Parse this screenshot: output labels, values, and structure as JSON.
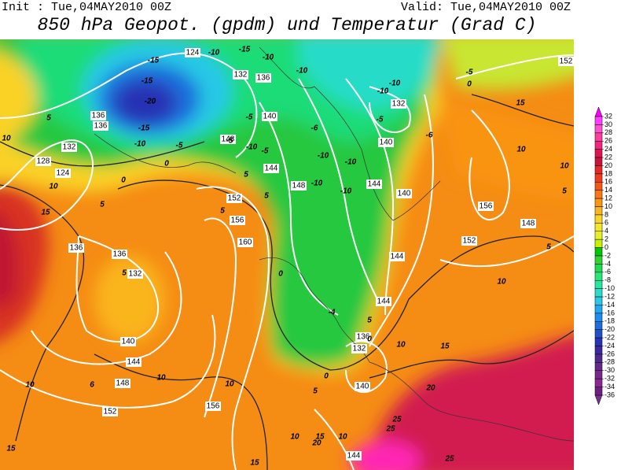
{
  "header": {
    "init": "Init : Tue,04MAY2010 00Z",
    "valid": "Valid: Tue,04MAY2010 00Z",
    "title": "850 hPa Geopot. (gpdm) und Temperatur (Grad C)"
  },
  "map": {
    "height_labels": [
      "124",
      "132",
      "136",
      "136",
      "136",
      "132",
      "128",
      "124",
      "148",
      "140",
      "144",
      "148",
      "152",
      "156",
      "160",
      "136",
      "136",
      "132",
      "140",
      "144",
      "148",
      "152",
      "156",
      "132",
      "140",
      "144",
      "140",
      "156",
      "152",
      "148",
      "144",
      "144",
      "136",
      "132",
      "140",
      "144",
      "152"
    ],
    "temperature_labels": [
      "-15",
      "-10",
      "-15",
      "-10",
      "-15",
      "-20",
      "-15",
      "-10",
      "-5",
      "-5",
      "-5",
      "-10",
      "-5",
      "-10",
      "-6",
      "-10",
      "-10",
      "-10",
      "-10",
      "-10",
      "-10",
      "-5",
      "-6",
      "-5",
      "0",
      "5",
      "10",
      "10",
      "15",
      "5",
      "0",
      "0",
      "5",
      "5",
      "5",
      "0",
      "5",
      "-4",
      "5",
      "0",
      "10",
      "15",
      "20",
      "25",
      "25",
      "25",
      "10",
      "6",
      "10",
      "10",
      "10",
      "15",
      "10",
      "20",
      "15",
      "15",
      "15",
      "10",
      "10",
      "5",
      "5",
      "10",
      "0",
      "5"
    ]
  },
  "colorbar": {
    "labels": [
      32,
      30,
      28,
      26,
      24,
      22,
      20,
      18,
      16,
      14,
      12,
      10,
      8,
      6,
      4,
      2,
      0,
      -2,
      -4,
      -6,
      -8,
      -10,
      -12,
      -14,
      -16,
      -18,
      -20,
      -22,
      -24,
      -26,
      -28,
      -30,
      -32,
      -34,
      -36
    ],
    "colors": [
      "#ff3cff",
      "#ff50d2",
      "#ff3ca0",
      "#f0287d",
      "#dc1450",
      "#c8143c",
      "#e62828",
      "#f03c1e",
      "#f55a14",
      "#fa7814",
      "#fa9614",
      "#fab41e",
      "#fad228",
      "#f5e628",
      "#e6f028",
      "#c8f000",
      "#00c800",
      "#32d232",
      "#1edc50",
      "#28e678",
      "#28e6a0",
      "#28dcc8",
      "#28c8e6",
      "#1eaaf0",
      "#1e8cf0",
      "#1e6edc",
      "#1e50c8",
      "#2832b4",
      "#3c28a0",
      "#50288c",
      "#64288c",
      "#78288c",
      "#8c2896",
      "#6e2080"
    ],
    "above_color": "#ff00ff",
    "below_color": "#7a3090"
  }
}
